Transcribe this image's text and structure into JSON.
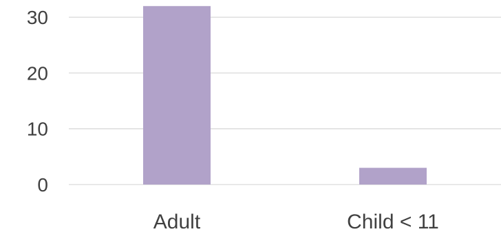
{
  "chart_data": {
    "type": "bar",
    "categories": [
      "Adult",
      "Child < 11"
    ],
    "values": [
      32,
      3
    ],
    "title": "",
    "xlabel": "",
    "ylabel": "",
    "ylim": [
      0,
      30
    ],
    "yticks": [
      0,
      10,
      20,
      30
    ],
    "grid": true,
    "legend": "none",
    "bar_color": "#b1a2c9",
    "gridline_color": "#d9d9d9",
    "text_color": "#404040"
  }
}
